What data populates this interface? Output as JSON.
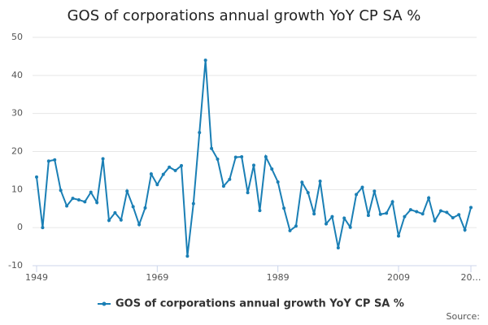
{
  "chart_data": {
    "type": "line",
    "title": "GOS of corporations annual growth YoY CP SA %",
    "source": "Source:",
    "x": [
      1949,
      1950,
      1951,
      1952,
      1953,
      1954,
      1955,
      1956,
      1957,
      1958,
      1959,
      1960,
      1961,
      1962,
      1963,
      1964,
      1965,
      1966,
      1967,
      1968,
      1969,
      1970,
      1971,
      1972,
      1973,
      1974,
      1975,
      1976,
      1977,
      1978,
      1979,
      1980,
      1981,
      1982,
      1983,
      1984,
      1985,
      1986,
      1987,
      1988,
      1989,
      1990,
      1991,
      1992,
      1993,
      1994,
      1995,
      1996,
      1997,
      1998,
      1999,
      2000,
      2001,
      2002,
      2003,
      2004,
      2005,
      2006,
      2007,
      2008,
      2009,
      2010,
      2011,
      2012,
      2013,
      2014,
      2015,
      2016,
      2017,
      2018,
      2019,
      2020,
      2021
    ],
    "series": [
      {
        "name": "GOS of corporations annual growth YoY CP SA %",
        "color": "#1a7fb5",
        "values": [
          13.3,
          0,
          17.5,
          17.8,
          9.8,
          5.7,
          7.7,
          7.3,
          6.8,
          9.3,
          6.6,
          18.1,
          1.9,
          3.9,
          2.0,
          9.6,
          5.5,
          0.8,
          5.2,
          14.1,
          11.3,
          14.0,
          15.9,
          15.0,
          16.3,
          -7.5,
          6.3,
          25.0,
          44.0,
          20.8,
          18.0,
          10.9,
          12.7,
          18.5,
          18.6,
          9.2,
          16.4,
          4.5,
          18.6,
          15.4,
          12.0,
          5.1,
          -0.8,
          0.4,
          11.9,
          9.2,
          3.6,
          12.2,
          1.0,
          2.9,
          -5.3,
          2.5,
          0.1,
          8.7,
          10.6,
          3.2,
          9.6,
          3.5,
          3.8,
          6.8,
          -2.2,
          2.9,
          4.7,
          4.2,
          3.6,
          7.8,
          1.8,
          4.4,
          4.0,
          2.6,
          3.4,
          -0.6,
          5.3
        ]
      }
    ],
    "xlim": [
      1949,
      2021
    ],
    "xticks": [
      1949,
      1969,
      1989,
      2009,
      {
        "value": 2021,
        "label": "20…"
      }
    ],
    "ylim": [
      -10,
      50
    ],
    "yticks": [
      -10,
      0,
      10,
      20,
      30,
      40,
      50
    ],
    "grid": true,
    "legend": "bottom"
  }
}
